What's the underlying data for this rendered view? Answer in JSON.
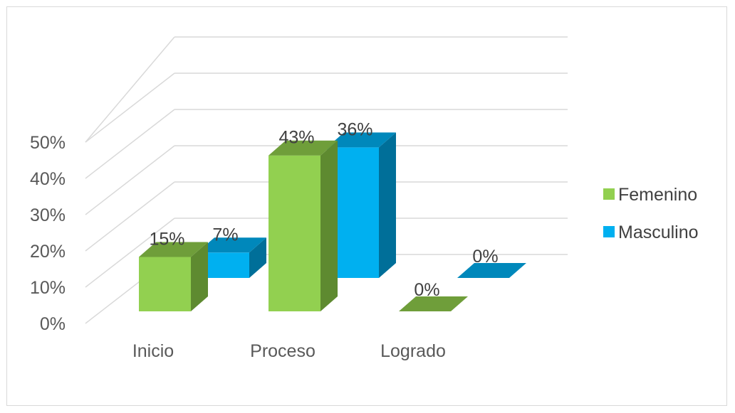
{
  "chart_data": {
    "type": "bar",
    "title": "",
    "xlabel": "",
    "ylabel": "",
    "categories": [
      "Inicio",
      "Proceso",
      "Logrado"
    ],
    "series": [
      {
        "name": "Femenino",
        "values": [
          15,
          43,
          0
        ],
        "labels": [
          "15%",
          "43%",
          "0%"
        ],
        "color": "#92d050",
        "top_color": "#6f9e3a",
        "side_color": "#5e8a30"
      },
      {
        "name": "Masculino",
        "values": [
          7,
          36,
          0
        ],
        "labels": [
          "7%",
          "36%",
          "0%"
        ],
        "color": "#00b0f0",
        "top_color": "#0088bb",
        "side_color": "#006f99"
      }
    ],
    "y_ticks": [
      "0%",
      "10%",
      "20%",
      "30%",
      "40%",
      "50%"
    ],
    "ylim": [
      0,
      50
    ],
    "grid": true,
    "legend_position": "right",
    "style": "3d-clustered-column"
  }
}
